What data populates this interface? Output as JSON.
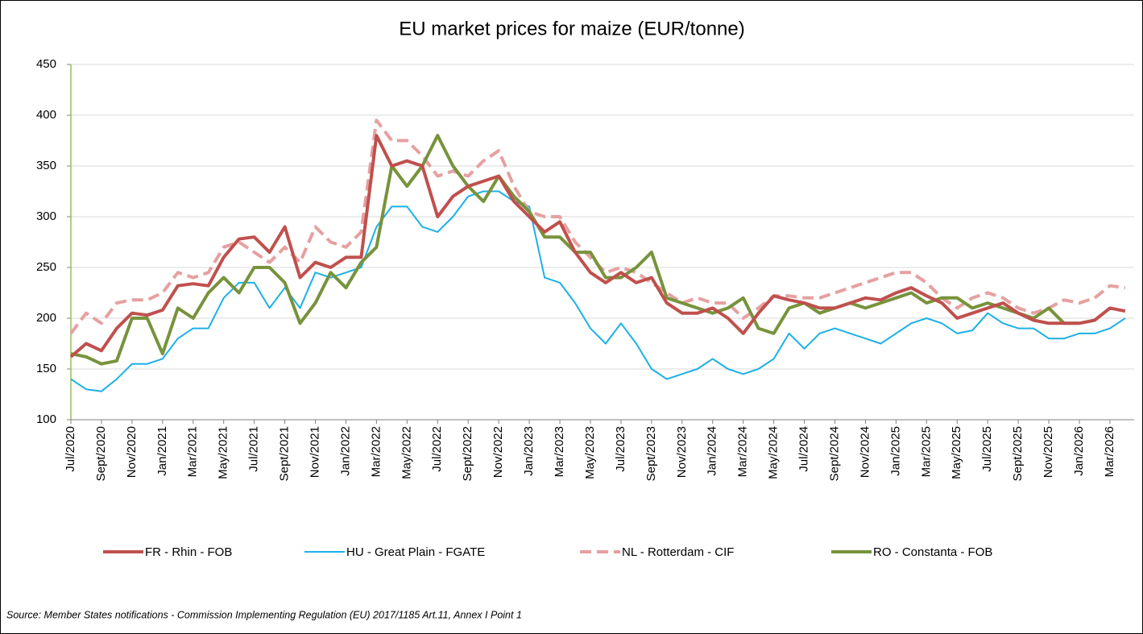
{
  "chart_data": {
    "type": "line",
    "title": "EU market prices for maize (EUR/tonne)",
    "source": "Source: Member States notifications - Commission Implementing Regulation (EU) 2017/1185 Art.11, Annex I Point 1",
    "categories": [
      "Jul/2020",
      null,
      "Sept/2020",
      null,
      "Nov/2020",
      null,
      "Jan/2021",
      null,
      "Mar/2021",
      null,
      "May/2021",
      null,
      "Jul/2021",
      null,
      "Sept/2021",
      null,
      "Nov/2021",
      null,
      "Jan/2022",
      null,
      "Mar/2022",
      null,
      "May/2022",
      null,
      "Jul/2022",
      null,
      "Sept/2022",
      null,
      "Nov/2022",
      null,
      "Jan/2023",
      null,
      "Mar/2023",
      null,
      "May/2023",
      null,
      "Jul/2023",
      null,
      "Sept/2023",
      null,
      "Nov/2023",
      null,
      "Jan/2024",
      null,
      "Mar/2024",
      null,
      "May/2024",
      null,
      "Jul/2024",
      null,
      "Sept/2024",
      null,
      "Nov/2024",
      null,
      "Jan/2025",
      null,
      "Mar/2025",
      null,
      "May/2025",
      null,
      "Jul/2025",
      null,
      "Sept/2025",
      null,
      "Nov/2025",
      null,
      "Jan/2026",
      null,
      "Mar/2026",
      null
    ],
    "series": [
      {
        "name": "FR - Rhin - FOB",
        "color": "#c0504d",
        "dash": false,
        "width": 4,
        "values": [
          162,
          175,
          168,
          190,
          205,
          203,
          208,
          232,
          234,
          232,
          260,
          278,
          280,
          265,
          290,
          240,
          255,
          250,
          260,
          260,
          380,
          350,
          355,
          350,
          300,
          320,
          330,
          335,
          340,
          315,
          300,
          285,
          295,
          265,
          245,
          235,
          245,
          235,
          240,
          215,
          205,
          205,
          210,
          200,
          185,
          205,
          222,
          218,
          215,
          210,
          210,
          215,
          220,
          218,
          225,
          230,
          222,
          215,
          200,
          205,
          210,
          215,
          205,
          198,
          195,
          195,
          195,
          198,
          210,
          207
        ]
      },
      {
        "name": "HU - Great Plain - FGATE",
        "color": "#1cb0e8",
        "dash": false,
        "width": 2,
        "values": [
          140,
          130,
          128,
          140,
          155,
          155,
          160,
          180,
          190,
          190,
          220,
          235,
          235,
          210,
          230,
          210,
          245,
          240,
          245,
          250,
          290,
          310,
          310,
          290,
          285,
          300,
          320,
          325,
          325,
          315,
          310,
          240,
          235,
          215,
          190,
          175,
          195,
          175,
          150,
          140,
          145,
          150,
          160,
          150,
          145,
          150,
          160,
          185,
          170,
          185,
          190,
          185,
          180,
          175,
          185,
          195,
          200,
          195,
          185,
          188,
          205,
          195,
          190,
          190,
          180,
          180,
          185,
          185,
          190,
          200
        ]
      },
      {
        "name": "NL - Rotterdam - CIF",
        "color": "#e6a0a0",
        "dash": true,
        "width": 4,
        "values": [
          185,
          205,
          195,
          215,
          218,
          218,
          225,
          245,
          240,
          245,
          270,
          275,
          265,
          255,
          270,
          255,
          290,
          275,
          270,
          285,
          395,
          375,
          375,
          360,
          340,
          345,
          340,
          355,
          365,
          330,
          305,
          300,
          300,
          275,
          260,
          245,
          250,
          245,
          235,
          225,
          215,
          220,
          215,
          215,
          200,
          210,
          222,
          222,
          220,
          220,
          225,
          230,
          235,
          240,
          245,
          245,
          235,
          220,
          210,
          220,
          225,
          220,
          210,
          205,
          210,
          218,
          215,
          220,
          232,
          230
        ]
      },
      {
        "name": "RO - Constanta - FOB",
        "color": "#77933c",
        "dash": false,
        "width": 4,
        "values": [
          165,
          162,
          155,
          158,
          200,
          200,
          165,
          210,
          200,
          225,
          240,
          225,
          250,
          250,
          235,
          195,
          215,
          245,
          230,
          255,
          270,
          350,
          330,
          350,
          380,
          350,
          330,
          315,
          340,
          320,
          305,
          280,
          280,
          265,
          265,
          240,
          240,
          250,
          265,
          220,
          215,
          210,
          205,
          210,
          220,
          190,
          185,
          210,
          215,
          205,
          210,
          215,
          210,
          215,
          220,
          225,
          215,
          220,
          220,
          210,
          215,
          210,
          205,
          200,
          210,
          195,
          195,
          null,
          null,
          null
        ]
      }
    ],
    "ylim": [
      100,
      450
    ],
    "yticks": [
      100,
      150,
      200,
      250,
      300,
      350,
      400,
      450
    ],
    "grid": true
  }
}
